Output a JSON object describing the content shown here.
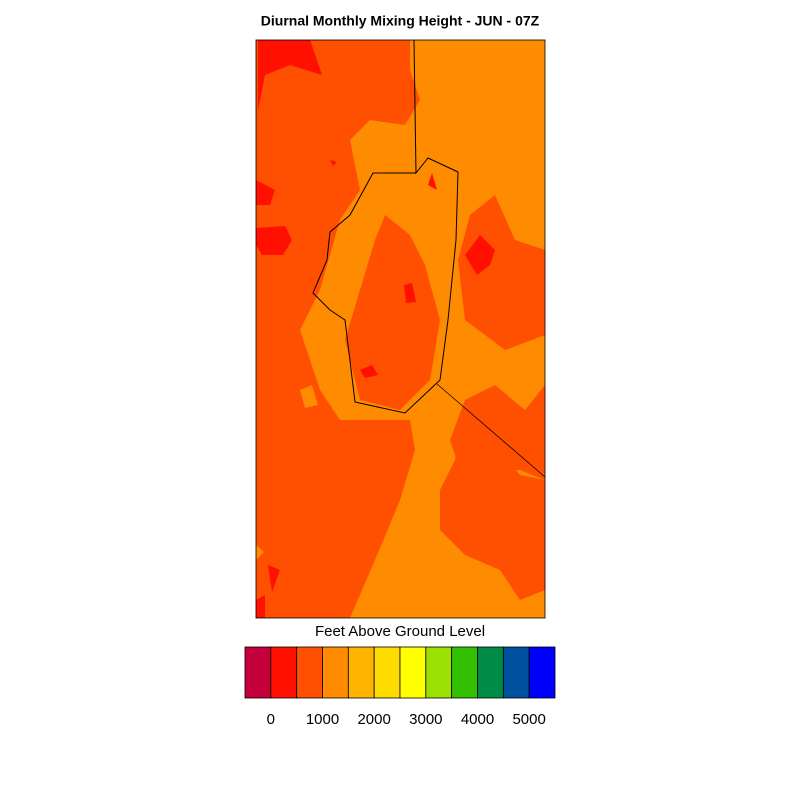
{
  "title": "Diurnal Monthly Mixing Height - JUN - 07Z",
  "colorbar": {
    "label": "Feet Above Ground Level",
    "colors": [
      "#c4003c",
      "#ff1000",
      "#ff4f00",
      "#ff8c00",
      "#ffb400",
      "#ffdc00",
      "#ffff00",
      "#9be000",
      "#32c000",
      "#008c46",
      "#0050a0",
      "#0000ff"
    ],
    "lim": [
      -500,
      5500
    ],
    "ticks": [
      0,
      1000,
      2000,
      3000,
      4000,
      5000
    ]
  }
}
